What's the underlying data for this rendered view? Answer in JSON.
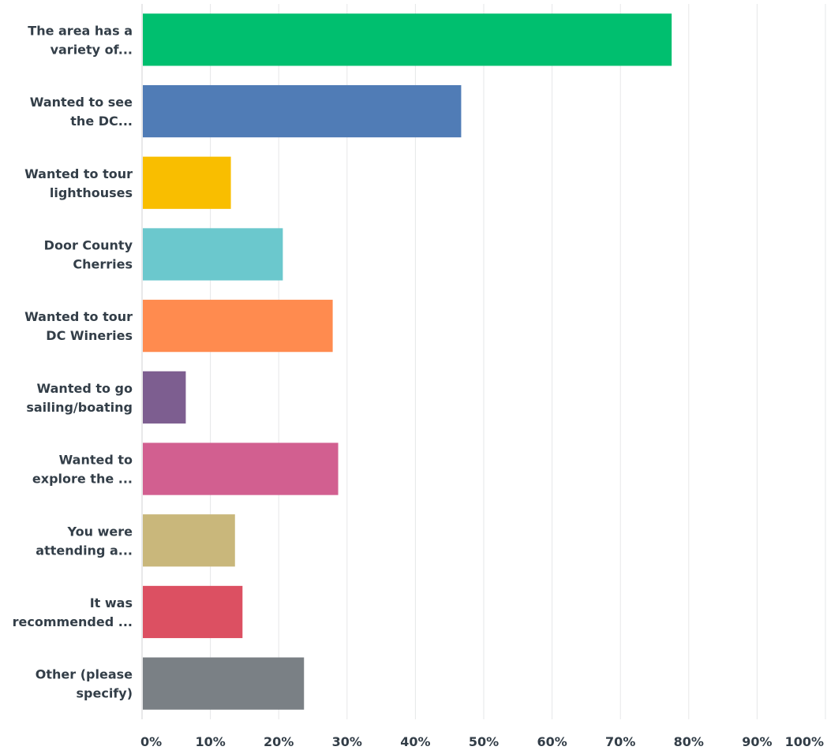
{
  "chart_data": {
    "type": "bar",
    "orientation": "horizontal",
    "categories": [
      [
        "The area has a",
        "variety of..."
      ],
      [
        "Wanted to see",
        "the DC..."
      ],
      [
        "Wanted to tour",
        "lighthouses"
      ],
      [
        "Door County",
        "Cherries"
      ],
      [
        "Wanted to tour",
        "DC Wineries"
      ],
      [
        "Wanted to go",
        "sailing/boating"
      ],
      [
        "Wanted to",
        "explore the ..."
      ],
      [
        "You were",
        "attending a..."
      ],
      [
        "It was",
        "recommended ..."
      ],
      [
        "Other (please",
        "specify)"
      ]
    ],
    "values": [
      77.5,
      46.7,
      13.0,
      20.6,
      27.9,
      6.4,
      28.7,
      13.6,
      14.7,
      23.7
    ],
    "colors": [
      "#00bf6f",
      "#507cb6",
      "#f9be00",
      "#6bc8cd",
      "#ff8b4f",
      "#7d5e90",
      "#d25f90",
      "#c9b77b",
      "#dc5062",
      "#7a8085"
    ],
    "xlim": [
      0,
      100
    ],
    "x_ticks": [
      "0%",
      "10%",
      "20%",
      "30%",
      "40%",
      "50%",
      "60%",
      "70%",
      "80%",
      "90%",
      "100%"
    ],
    "grid": true,
    "title": "",
    "xlabel": "",
    "ylabel": ""
  }
}
